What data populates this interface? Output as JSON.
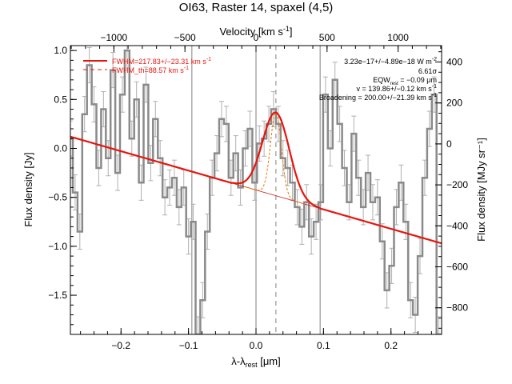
{
  "chart_data": {
    "type": "line",
    "title": "OI63, Raster 14, spaxel (4,5)",
    "xlabel_main": "λ-λ",
    "xlabel_sub": "rest",
    "xlabel_unit": " [μm]",
    "ylabel": "Flux density [Jy]",
    "ylabel_right": "Flux density [MJy sr⁻¹]",
    "top_axis_label": "Velocity [km s",
    "top_axis_label_sup": "-1",
    "top_axis_label_end": "]",
    "xlim": [
      -0.275,
      0.275
    ],
    "ylim": [
      -1.9,
      1.05
    ],
    "ylim_right": [
      -930,
      480
    ],
    "velocity_lim": [
      -1306,
      1306
    ],
    "x_ticks": [
      -0.2,
      -0.1,
      0.0,
      0.1,
      0.2
    ],
    "x_tick_labels": [
      "−0.2",
      "−0.1",
      "0.0",
      "0.1",
      "0.2"
    ],
    "y_ticks": [
      -1.5,
      -1.0,
      -0.5,
      0.0,
      0.5,
      1.0
    ],
    "y_tick_labels": [
      "−1.5",
      "−1.0",
      "−0.5",
      "0.0",
      "0.5",
      "1.0"
    ],
    "y_right_ticks": [
      -800,
      -600,
      -400,
      -200,
      0,
      200,
      400
    ],
    "y_right_tick_labels": [
      "−800",
      "−600",
      "−400",
      "−200",
      "0",
      "200",
      "400"
    ],
    "top_ticks": [
      -1000,
      -500,
      0,
      500,
      1000
    ],
    "top_tick_labels": [
      "−1000",
      "−500",
      "0",
      "500",
      "1000"
    ],
    "legend": {
      "placement": "top-left",
      "entries": [
        {
          "label": "FWHM=217.83+/−23.31 km s",
          "sup": "-1",
          "style": "solid"
        },
        {
          "label": "FWHM_th=88.57 km s",
          "sup": "-1",
          "style": "dashed"
        }
      ]
    },
    "annotations": [
      "3.23e−17+/−4.89e−18 W m",
      "6.61σ",
      "EQW",
      "v = 139.86+/−0.12 km s",
      "Broadening = 200.00+/−21.39 km s"
    ],
    "annotation_parts": {
      "flux_sup": "-2",
      "eqw_sub": "rest",
      "eqw_value": " = −0.09 μm",
      "v_sup": "-1",
      "broad_sup": "-1"
    },
    "vertical_lines": [
      -0.095,
      0.0,
      0.095
    ],
    "line_center": 0.0295,
    "spectrum": {
      "x": [
        -0.275,
        -0.268,
        -0.261,
        -0.254,
        -0.247,
        -0.24,
        -0.233,
        -0.226,
        -0.219,
        -0.212,
        -0.205,
        -0.198,
        -0.191,
        -0.184,
        -0.177,
        -0.17,
        -0.163,
        -0.156,
        -0.149,
        -0.142,
        -0.135,
        -0.128,
        -0.121,
        -0.114,
        -0.107,
        -0.1,
        -0.093,
        -0.086,
        -0.079,
        -0.072,
        -0.065,
        -0.058,
        -0.051,
        -0.044,
        -0.037,
        -0.03,
        -0.023,
        -0.016,
        -0.009,
        -0.002,
        0.005,
        0.012,
        0.019,
        0.026,
        0.033,
        0.04,
        0.047,
        0.054,
        0.061,
        0.068,
        0.075,
        0.082,
        0.089,
        0.096,
        0.103,
        0.11,
        0.117,
        0.124,
        0.131,
        0.138,
        0.145,
        0.152,
        0.159,
        0.166,
        0.173,
        0.18,
        0.187,
        0.194,
        0.201,
        0.208,
        0.215,
        0.222,
        0.229,
        0.236,
        0.243,
        0.25,
        0.257,
        0.264,
        0.271
      ],
      "y": [
        0.1,
        -0.45,
        -0.85,
        0.35,
        0.85,
        0.45,
        -0.2,
        0.4,
        -0.1,
        0.8,
        -0.25,
        0.55,
        1.0,
        0.1,
        0.5,
        -0.35,
        0.65,
        -0.15,
        0.3,
        -0.1,
        -0.5,
        -0.4,
        -0.3,
        -0.6,
        -0.4,
        -0.9,
        -0.75,
        -1.9,
        -1.55,
        -0.85,
        -0.3,
        -0.05,
        0.3,
        0.25,
        -0.3,
        -0.05,
        -0.4,
        0.0,
        0.2,
        -0.35,
        0.05,
        0.1,
        0.25,
        0.4,
        0.25,
        -0.1,
        -0.2,
        -0.35,
        -0.6,
        -0.8,
        -0.55,
        -0.9,
        -0.75,
        -0.55,
        0.55,
        0.0,
        0.7,
        0.25,
        -0.2,
        -0.55,
        0.15,
        -0.3,
        -0.6,
        -0.25,
        -0.55,
        -0.5,
        -0.95,
        -1.45,
        -1.2,
        -0.6,
        -0.35,
        -0.75,
        -1.55,
        -1.7,
        -1.1,
        -0.3,
        0.2,
        0.55,
        -1.9
      ],
      "error": 0.18
    },
    "fit": {
      "baseline_at_xmin": 0.12,
      "baseline_at_xmax": -0.97,
      "gaussian_center": 0.0295,
      "gaussian_amplitude": 0.85,
      "gaussian_fwhm": 0.0465,
      "thermal_fwhm": 0.0189,
      "fit_range": [
        -0.035,
        0.095
      ]
    },
    "colors": {
      "spectrum": "#8a8a8a",
      "error_bars": "#b0b0b0",
      "fit": "#e8140c",
      "baseline_under_line": "#cc1a1a",
      "thermal": "#e87a00",
      "grid_lines": "#808080",
      "axes": "#000000"
    }
  }
}
